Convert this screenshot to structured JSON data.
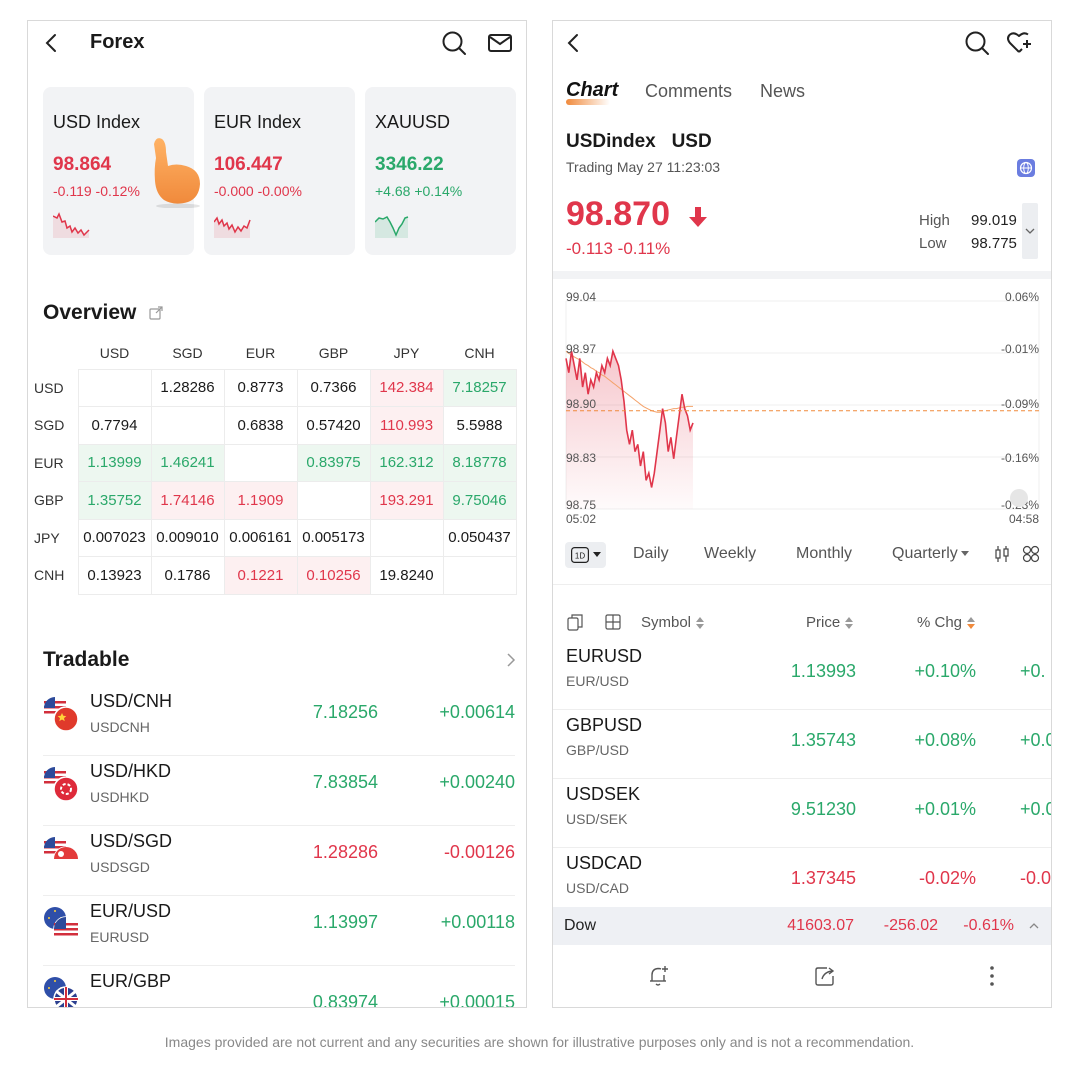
{
  "left": {
    "header": {
      "title": "Forex"
    },
    "cards": [
      {
        "name": "USD Index",
        "price": "98.864",
        "change": "-0.119 -0.12%",
        "trend": "down",
        "spark_icon": "red-sparkline"
      },
      {
        "name": "EUR Index",
        "price": "106.447",
        "change": "-0.000 -0.00%",
        "trend": "down",
        "spark_icon": "red-sparkline"
      },
      {
        "name": "XAUUSD",
        "price": "3346.22",
        "change": "+4.68 +0.14%",
        "trend": "up",
        "spark_icon": "green-sparkline"
      }
    ],
    "overview": {
      "title": "Overview",
      "columns": [
        "USD",
        "SGD",
        "EUR",
        "GBP",
        "JPY",
        "CNH"
      ],
      "rows": [
        {
          "label": "USD",
          "cells": [
            "",
            "1.28286",
            "0.8773",
            "0.7366",
            "142.384",
            "7.18257"
          ],
          "tones": [
            "",
            "",
            "",
            "",
            "red",
            "green"
          ]
        },
        {
          "label": "SGD",
          "cells": [
            "0.7794",
            "",
            "0.6838",
            "0.57420",
            "110.993",
            "5.5988"
          ],
          "tones": [
            "",
            "",
            "",
            "",
            "red",
            ""
          ]
        },
        {
          "label": "EUR",
          "cells": [
            "1.13999",
            "1.46241",
            "",
            "0.83975",
            "162.312",
            "8.18778"
          ],
          "tones": [
            "green",
            "green",
            "",
            "green",
            "green",
            "green"
          ]
        },
        {
          "label": "GBP",
          "cells": [
            "1.35752",
            "1.74146",
            "1.1909",
            "",
            "193.291",
            "9.75046"
          ],
          "tones": [
            "green",
            "red",
            "red",
            "",
            "red",
            "green"
          ]
        },
        {
          "label": "JPY",
          "cells": [
            "0.007023",
            "0.009010",
            "0.006161",
            "0.005173",
            "",
            "0.050437"
          ],
          "tones": [
            "",
            "",
            "",
            "",
            "",
            ""
          ]
        },
        {
          "label": "CNH",
          "cells": [
            "0.13923",
            "0.1786",
            "0.1221",
            "0.10256",
            "19.8240",
            ""
          ],
          "tones": [
            "",
            "",
            "red",
            "red",
            "",
            ""
          ]
        }
      ]
    },
    "tradable": {
      "title": "Tradable",
      "items": [
        {
          "symbol": "USD/CNH",
          "code": "USDCNH",
          "price": "7.18256",
          "change": "+0.00614",
          "tone": "green"
        },
        {
          "symbol": "USD/HKD",
          "code": "USDHKD",
          "price": "7.83854",
          "change": "+0.00240",
          "tone": "green"
        },
        {
          "symbol": "USD/SGD",
          "code": "USDSGD",
          "price": "1.28286",
          "change": "-0.00126",
          "tone": "red"
        },
        {
          "symbol": "EUR/USD",
          "code": "EURUSD",
          "price": "1.13997",
          "change": "+0.00118",
          "tone": "green"
        },
        {
          "symbol": "EUR/GBP",
          "code": "",
          "price": "0.83974",
          "change": "+0.00015",
          "tone": "green"
        }
      ]
    }
  },
  "right": {
    "tabs": [
      "Chart",
      "Comments",
      "News"
    ],
    "quote": {
      "name": "USDindex   USD",
      "status": "Trading May 27 11:23:03",
      "price": "98.870",
      "change": "-0.113 -0.11%",
      "high_label": "High",
      "high": "99.019",
      "low_label": "Low",
      "low": "98.775"
    },
    "chart_data": {
      "type": "line",
      "y_ticks": [
        "99.04",
        "98.97",
        "98.90",
        "98.83",
        "98.75"
      ],
      "pct_ticks": [
        "0.06%",
        "-0.01%",
        "-0.09%",
        "-0.16%",
        "-0.23%"
      ],
      "x_labels": [
        "05:02",
        "04:58"
      ],
      "ylim": [
        98.75,
        99.04
      ],
      "prev_close": 98.887,
      "series": [
        {
          "values": [
            98.96,
            98.94,
            98.97,
            98.95,
            98.93,
            98.96,
            98.92,
            98.94,
            98.91,
            98.93,
            98.92,
            98.94,
            98.93,
            98.95,
            98.94,
            98.96,
            98.95,
            98.97,
            98.96,
            98.95,
            98.93,
            98.9,
            98.86,
            98.84,
            98.86,
            98.83,
            98.84,
            98.81,
            98.83,
            98.79,
            98.8,
            98.78,
            98.8,
            98.83,
            98.86,
            98.89,
            98.87,
            98.83,
            98.85,
            98.82,
            98.85,
            98.88,
            98.91,
            98.89,
            98.88,
            98.86,
            98.87
          ]
        },
        {
          "values": [
            98.97,
            98.967,
            98.965,
            98.962,
            98.96,
            98.958,
            98.955,
            98.952,
            98.95,
            98.947,
            98.945,
            98.942,
            98.94,
            98.937,
            98.935,
            98.932,
            98.929,
            98.926,
            98.923,
            98.92,
            98.917,
            98.914,
            98.911,
            98.908,
            98.905,
            98.902,
            98.899,
            98.896,
            98.893,
            98.891,
            98.889,
            98.887,
            98.886,
            98.885,
            98.885,
            98.886,
            98.887,
            98.888,
            98.889,
            98.89,
            98.89,
            98.891,
            98.892,
            98.892,
            98.893,
            98.893,
            98.893
          ]
        }
      ],
      "grid": true
    },
    "periods": {
      "selected": "1D",
      "items": [
        "Daily",
        "Weekly",
        "Monthly",
        "Quarterly"
      ]
    },
    "list": {
      "headers": {
        "symbol": "Symbol",
        "price": "Price",
        "chg": "% Chg"
      },
      "rows": [
        {
          "symbol": "EURUSD",
          "pair": "EUR/USD",
          "price": "1.13993",
          "chg": "+0.10%",
          "extra": "+0.",
          "tone": "green"
        },
        {
          "symbol": "GBPUSD",
          "pair": "GBP/USD",
          "price": "1.35743",
          "chg": "+0.08%",
          "extra": "+0.0",
          "tone": "green"
        },
        {
          "symbol": "USDSEK",
          "pair": "USD/SEK",
          "price": "9.51230",
          "chg": "+0.01%",
          "extra": "+0.0",
          "tone": "green"
        },
        {
          "symbol": "USDCAD",
          "pair": "USD/CAD",
          "price": "1.37345",
          "chg": "-0.02%",
          "extra": "-0.0",
          "tone": "red"
        }
      ]
    },
    "ticker": {
      "name": "Dow",
      "value": "41603.07",
      "change": "-256.02",
      "pct": "-0.61%"
    }
  },
  "footer": {
    "disclaimer": "Images provided are not current and any securities are shown for illustrative purposes only and is not a recommendation."
  },
  "colors": {
    "red": "#e0364b",
    "green": "#2aa86a",
    "accent": "#f08a3c",
    "card_bg": "#f2f3f5"
  }
}
